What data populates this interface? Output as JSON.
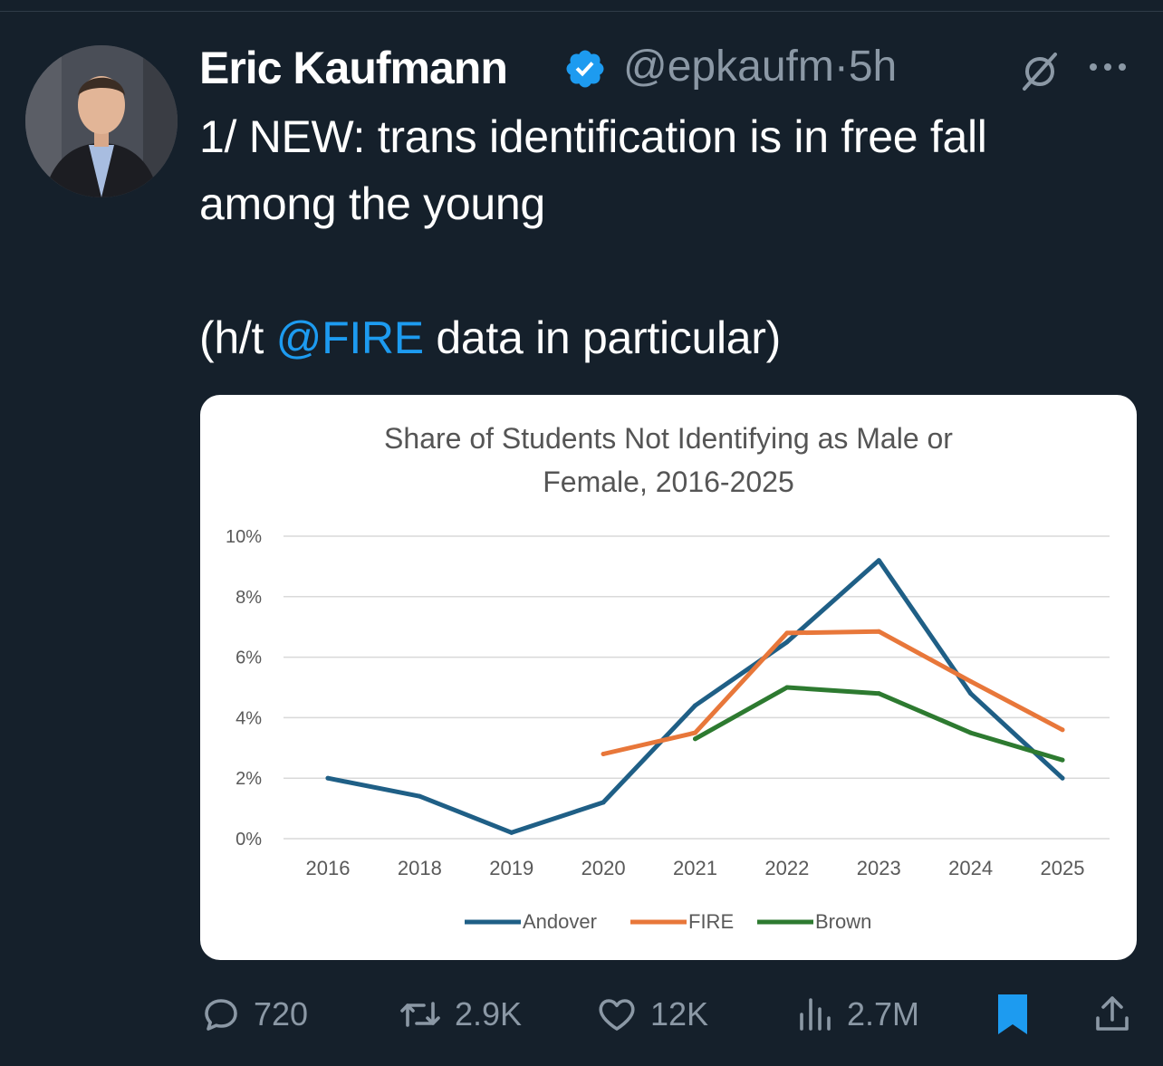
{
  "tweet": {
    "author_name": "Eric Kaufmann",
    "handle": "@epkaufm",
    "separator": "·",
    "time": "5h",
    "text_line1": "1/ NEW: trans identification is in free fall",
    "text_line2": "among the young",
    "text_prefix": "(h/t ",
    "mention": "@FIRE",
    "text_suffix": " data in particular)"
  },
  "icons": {
    "verified": "verified-badge-icon",
    "grok": "grok-icon",
    "more": "more-icon",
    "reply": "reply-icon",
    "retweet": "retweet-icon",
    "like": "like-icon",
    "views": "views-icon",
    "bookmark": "bookmark-icon",
    "share": "share-icon"
  },
  "colors": {
    "background": "#15202b",
    "accent": "#1d9bf0",
    "muted": "#8b98a5",
    "andover": "#1f5f86",
    "fire": "#e8773a",
    "brown": "#2d7a30"
  },
  "actions": {
    "replies": "720",
    "reposts": "2.9K",
    "likes": "12K",
    "views": "2.7M"
  },
  "chart_data": {
    "type": "line",
    "title_line1": "Share of Students Not Identifying as Male or",
    "title_line2": "Female, 2016-2025",
    "categories": [
      "2016",
      "2018",
      "2019",
      "2020",
      "2021",
      "2022",
      "2023",
      "2024",
      "2025"
    ],
    "y_ticks": [
      "0%",
      "2%",
      "4%",
      "6%",
      "8%",
      "10%"
    ],
    "ylim": [
      0,
      10
    ],
    "grid": true,
    "legend_position": "bottom",
    "series": [
      {
        "name": "Andover",
        "color": "#1f5f86",
        "values": [
          2.0,
          1.4,
          0.2,
          1.2,
          4.4,
          6.5,
          9.2,
          4.8,
          2.0
        ]
      },
      {
        "name": "FIRE",
        "color": "#e8773a",
        "values": [
          null,
          null,
          null,
          2.8,
          3.5,
          6.8,
          6.85,
          5.2,
          3.6
        ]
      },
      {
        "name": "Brown",
        "color": "#2d7a30",
        "values": [
          null,
          null,
          null,
          null,
          3.3,
          5.0,
          4.8,
          3.5,
          2.6
        ]
      }
    ]
  }
}
